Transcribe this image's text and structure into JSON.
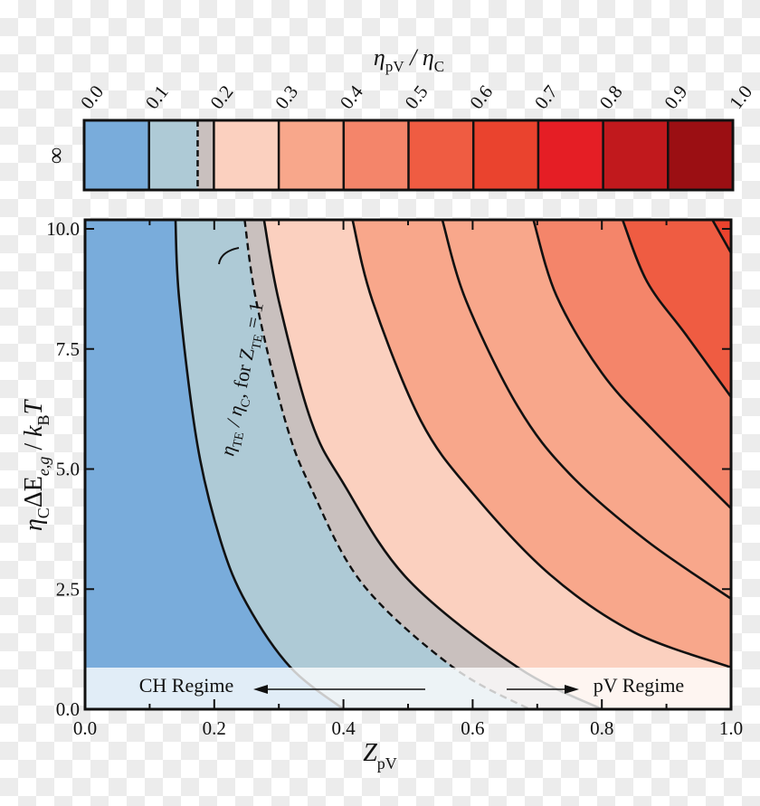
{
  "chart_data": {
    "type": "heatmap",
    "subtype": "filled-contour",
    "title": "",
    "xlabel": "Z_pV",
    "ylabel": "η_C ΔE_e,g / k_B T",
    "xlim": [
      0.0,
      1.0
    ],
    "ylim": [
      0.0,
      10.0
    ],
    "x_ticks": [
      "0.0",
      "0.2",
      "0.4",
      "0.6",
      "0.8",
      "1.0"
    ],
    "y_ticks": [
      "0.0",
      "2.5",
      "5.0",
      "7.5",
      "10.0"
    ],
    "colorbar": {
      "label": "η_pV / η_C",
      "side_label": "∞",
      "ticks": [
        "0.0",
        "0.1",
        "0.2",
        "0.3",
        "0.4",
        "0.5",
        "0.6",
        "0.7",
        "0.8",
        "0.9",
        "1.0"
      ],
      "levels": [
        0.0,
        0.1,
        0.2,
        0.3,
        0.4,
        0.5,
        0.6,
        0.7,
        0.8,
        0.9,
        1.0
      ],
      "colors": [
        "#79acdb",
        "#aecad6",
        "#fbd0bf",
        "#f8a78b",
        "#f4856a",
        "#ef5c42",
        "#ea432e",
        "#e51e25",
        "#c1191d",
        "#9b0f13"
      ],
      "reference_marker": {
        "value": 0.175,
        "style": "dashed",
        "shaded_to": 0.2,
        "shade_color": "#c9c0be"
      }
    },
    "contours": [
      {
        "level": 0.1,
        "style": "solid",
        "points_zv": [
          [
            0.14,
            10.19
          ],
          [
            0.146,
            8.5
          ],
          [
            0.174,
            5.5
          ],
          [
            0.21,
            3.5
          ],
          [
            0.25,
            2.2
          ],
          [
            0.318,
            0.87
          ],
          [
            0.4,
            0.0
          ]
        ]
      },
      {
        "level": 0.175,
        "style": "dashed",
        "label": "η_TE / η_C, for Z_TE = 1",
        "points_zv": [
          [
            0.247,
            10.19
          ],
          [
            0.265,
            8.5
          ],
          [
            0.31,
            6.0
          ],
          [
            0.35,
            4.6
          ],
          [
            0.43,
            2.6
          ],
          [
            0.57,
            0.87
          ],
          [
            0.688,
            0.0
          ]
        ]
      },
      {
        "level": 0.2,
        "style": "solid",
        "points_zv": [
          [
            0.277,
            10.19
          ],
          [
            0.3,
            8.5
          ],
          [
            0.35,
            6.0
          ],
          [
            0.4,
            4.7
          ],
          [
            0.5,
            2.7
          ],
          [
            0.67,
            0.87
          ],
          [
            0.8,
            0.0
          ]
        ]
      },
      {
        "level": 0.3,
        "style": "solid",
        "points_zv": [
          [
            0.414,
            10.19
          ],
          [
            0.445,
            8.5
          ],
          [
            0.52,
            6.0
          ],
          [
            0.6,
            4.5
          ],
          [
            0.72,
            2.8
          ],
          [
            0.85,
            1.6
          ],
          [
            1.0,
            0.87
          ]
        ]
      },
      {
        "level": 0.35,
        "style": "solid",
        "points_zv": [
          [
            0.553,
            10.19
          ],
          [
            0.59,
            8.5
          ],
          [
            0.67,
            6.3
          ],
          [
            0.75,
            4.9
          ],
          [
            0.87,
            3.5
          ],
          [
            1.0,
            2.3
          ]
        ]
      },
      {
        "level": 0.4,
        "style": "solid",
        "points_zv": [
          [
            0.694,
            10.19
          ],
          [
            0.73,
            8.6
          ],
          [
            0.8,
            7.0
          ],
          [
            0.88,
            5.8
          ],
          [
            1.0,
            4.18
          ]
        ]
      },
      {
        "level": 0.5,
        "style": "solid",
        "points_zv": [
          [
            0.832,
            10.19
          ],
          [
            0.87,
            8.9
          ],
          [
            0.93,
            7.8
          ],
          [
            1.0,
            6.5
          ]
        ]
      },
      {
        "level": 0.6,
        "style": "solid",
        "points_zv": [
          [
            0.971,
            10.19
          ],
          [
            1.0,
            9.5
          ]
        ]
      }
    ],
    "annotations": [
      {
        "text": "CH Regime",
        "arrow": "left",
        "z_range": [
          0.26,
          0.53
        ],
        "y": 0.4
      },
      {
        "text": "pV Regime",
        "arrow": "right",
        "z_range": [
          0.65,
          0.77
        ],
        "y": 0.4
      },
      {
        "text": "η_TE / η_C, for Z_TE = 1",
        "rotation": -90
      }
    ],
    "regime_band": {
      "y_range": [
        0.0,
        0.87
      ],
      "overlay": "semi-transparent white"
    },
    "grid": false,
    "legend": "colorbar top"
  },
  "labels": {
    "colorbar_title_main": "η",
    "colorbar_title_sub1": "pV",
    "colorbar_title_mid": " / η",
    "colorbar_title_sub2": "C",
    "infinity": "∞",
    "xlabel_main": "Z",
    "xlabel_sub": "pV",
    "ylabel_eta": "η",
    "ylabel_C": "C",
    "ylabel_DE": "ΔE",
    "ylabel_eg": "e,g",
    "ylabel_slash": " / ",
    "ylabel_k": "k",
    "ylabel_B": "B",
    "ylabel_T": "T",
    "ch_regime": "CH Regime",
    "pv_regime": "pV Regime",
    "ann_eta": "η",
    "ann_TE": "TE",
    "ann_mid": " / η",
    "ann_C": "C",
    "ann_for": ", for Z",
    "ann_TE2": "TE",
    "ann_eq": " = 1"
  }
}
